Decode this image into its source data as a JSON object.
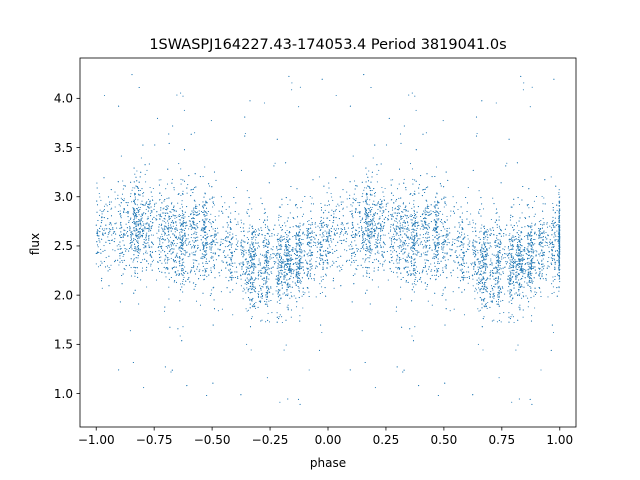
{
  "chart_data": {
    "type": "scatter",
    "title": "1SWASPJ164227.43-174053.4 Period 3819041.0s",
    "xlabel": "phase",
    "ylabel": "flux",
    "xlim": [
      -1.07,
      1.07
    ],
    "ylim": [
      0.66,
      4.41
    ],
    "xticks": [
      -1.0,
      -0.75,
      -0.5,
      -0.25,
      0.0,
      0.25,
      0.5,
      0.75,
      1.0
    ],
    "xtick_labels": [
      "−1.00",
      "−0.75",
      "−0.50",
      "−0.25",
      "0.00",
      "0.25",
      "0.50",
      "0.75",
      "1.00"
    ],
    "yticks": [
      1.0,
      1.5,
      2.0,
      2.5,
      3.0,
      3.5,
      4.0
    ],
    "ytick_labels": [
      "1.0",
      "1.5",
      "2.0",
      "2.5",
      "3.0",
      "3.5",
      "4.0"
    ],
    "grid": false,
    "point_color": "#1f77b4",
    "series": [
      {
        "phase_folded": true,
        "period_in_phase": 1.0,
        "profile": {
          "phase": [
            0.0,
            0.05,
            0.1,
            0.15,
            0.2,
            0.25,
            0.3,
            0.35,
            0.4,
            0.45,
            0.5,
            0.55,
            0.6,
            0.65,
            0.7,
            0.75,
            0.8,
            0.85,
            0.9,
            0.95
          ],
          "median_flux": [
            2.55,
            2.6,
            2.68,
            2.72,
            2.7,
            2.65,
            2.6,
            2.55,
            2.6,
            2.65,
            2.6,
            2.5,
            2.45,
            2.35,
            2.3,
            2.3,
            2.32,
            2.35,
            2.4,
            2.5
          ],
          "scatter": [
            0.22,
            0.22,
            0.24,
            0.25,
            0.25,
            0.24,
            0.24,
            0.26,
            0.25,
            0.24,
            0.24,
            0.23,
            0.24,
            0.25,
            0.24,
            0.24,
            0.23,
            0.23,
            0.22,
            0.22
          ]
        },
        "outlier_range": [
          0.85,
          4.25
        ],
        "n_points": 9000
      }
    ]
  }
}
